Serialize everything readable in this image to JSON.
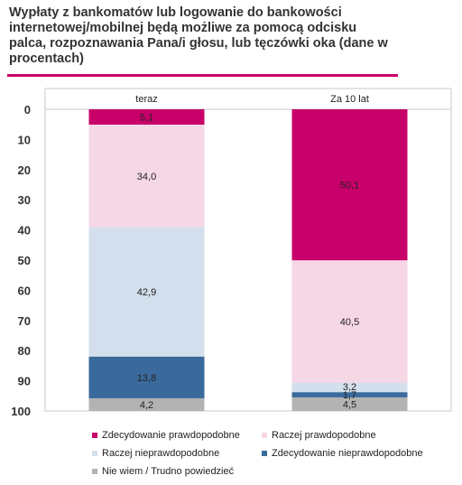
{
  "title": "Wypłaty z bankomatów lub logowanie do bankowości internetowej/mobilnej będą możliwe za pomocą odcisku palca, rozpoznawania Pana/i głosu, lub tęczówki oka (dane w procentach)",
  "colors": {
    "accent": "#c8006a",
    "grid": "#c9c9c9"
  },
  "chart_data": {
    "type": "bar",
    "stacked": true,
    "orientation": "vertical",
    "y_inverted": true,
    "ylim": [
      0,
      100
    ],
    "yticks": [
      "0",
      "10",
      "20",
      "30",
      "40",
      "50",
      "60",
      "70",
      "80",
      "90",
      "100"
    ],
    "categories": [
      "teraz",
      "Za 10 lat"
    ],
    "grid": false,
    "legend_position": "bottom",
    "series": [
      {
        "name": "Zdecydowanie prawdopodobne",
        "color": "#c8006a",
        "values": [
          5.1,
          50.1
        ],
        "labels": [
          "5,1",
          "50,1"
        ]
      },
      {
        "name": "Raczej prawdopodobne",
        "color": "#f6d7e6",
        "values": [
          34.0,
          40.5
        ],
        "labels": [
          "34,0",
          "40,5"
        ]
      },
      {
        "name": "Raczej nieprawdopodobne",
        "color": "#d3dfec",
        "values": [
          42.9,
          3.2
        ],
        "labels": [
          "42,9",
          "3,2"
        ]
      },
      {
        "name": "Zdecydowanie nieprawdopodobne",
        "color": "#3a6a9c",
        "values": [
          13.8,
          1.7
        ],
        "labels": [
          "13,8",
          "1,7"
        ]
      },
      {
        "name": "Nie wiem / Trudno powiedzieć",
        "color": "#b3b3b3",
        "values": [
          4.2,
          4.5
        ],
        "labels": [
          "4,2",
          "4,5"
        ]
      }
    ]
  }
}
